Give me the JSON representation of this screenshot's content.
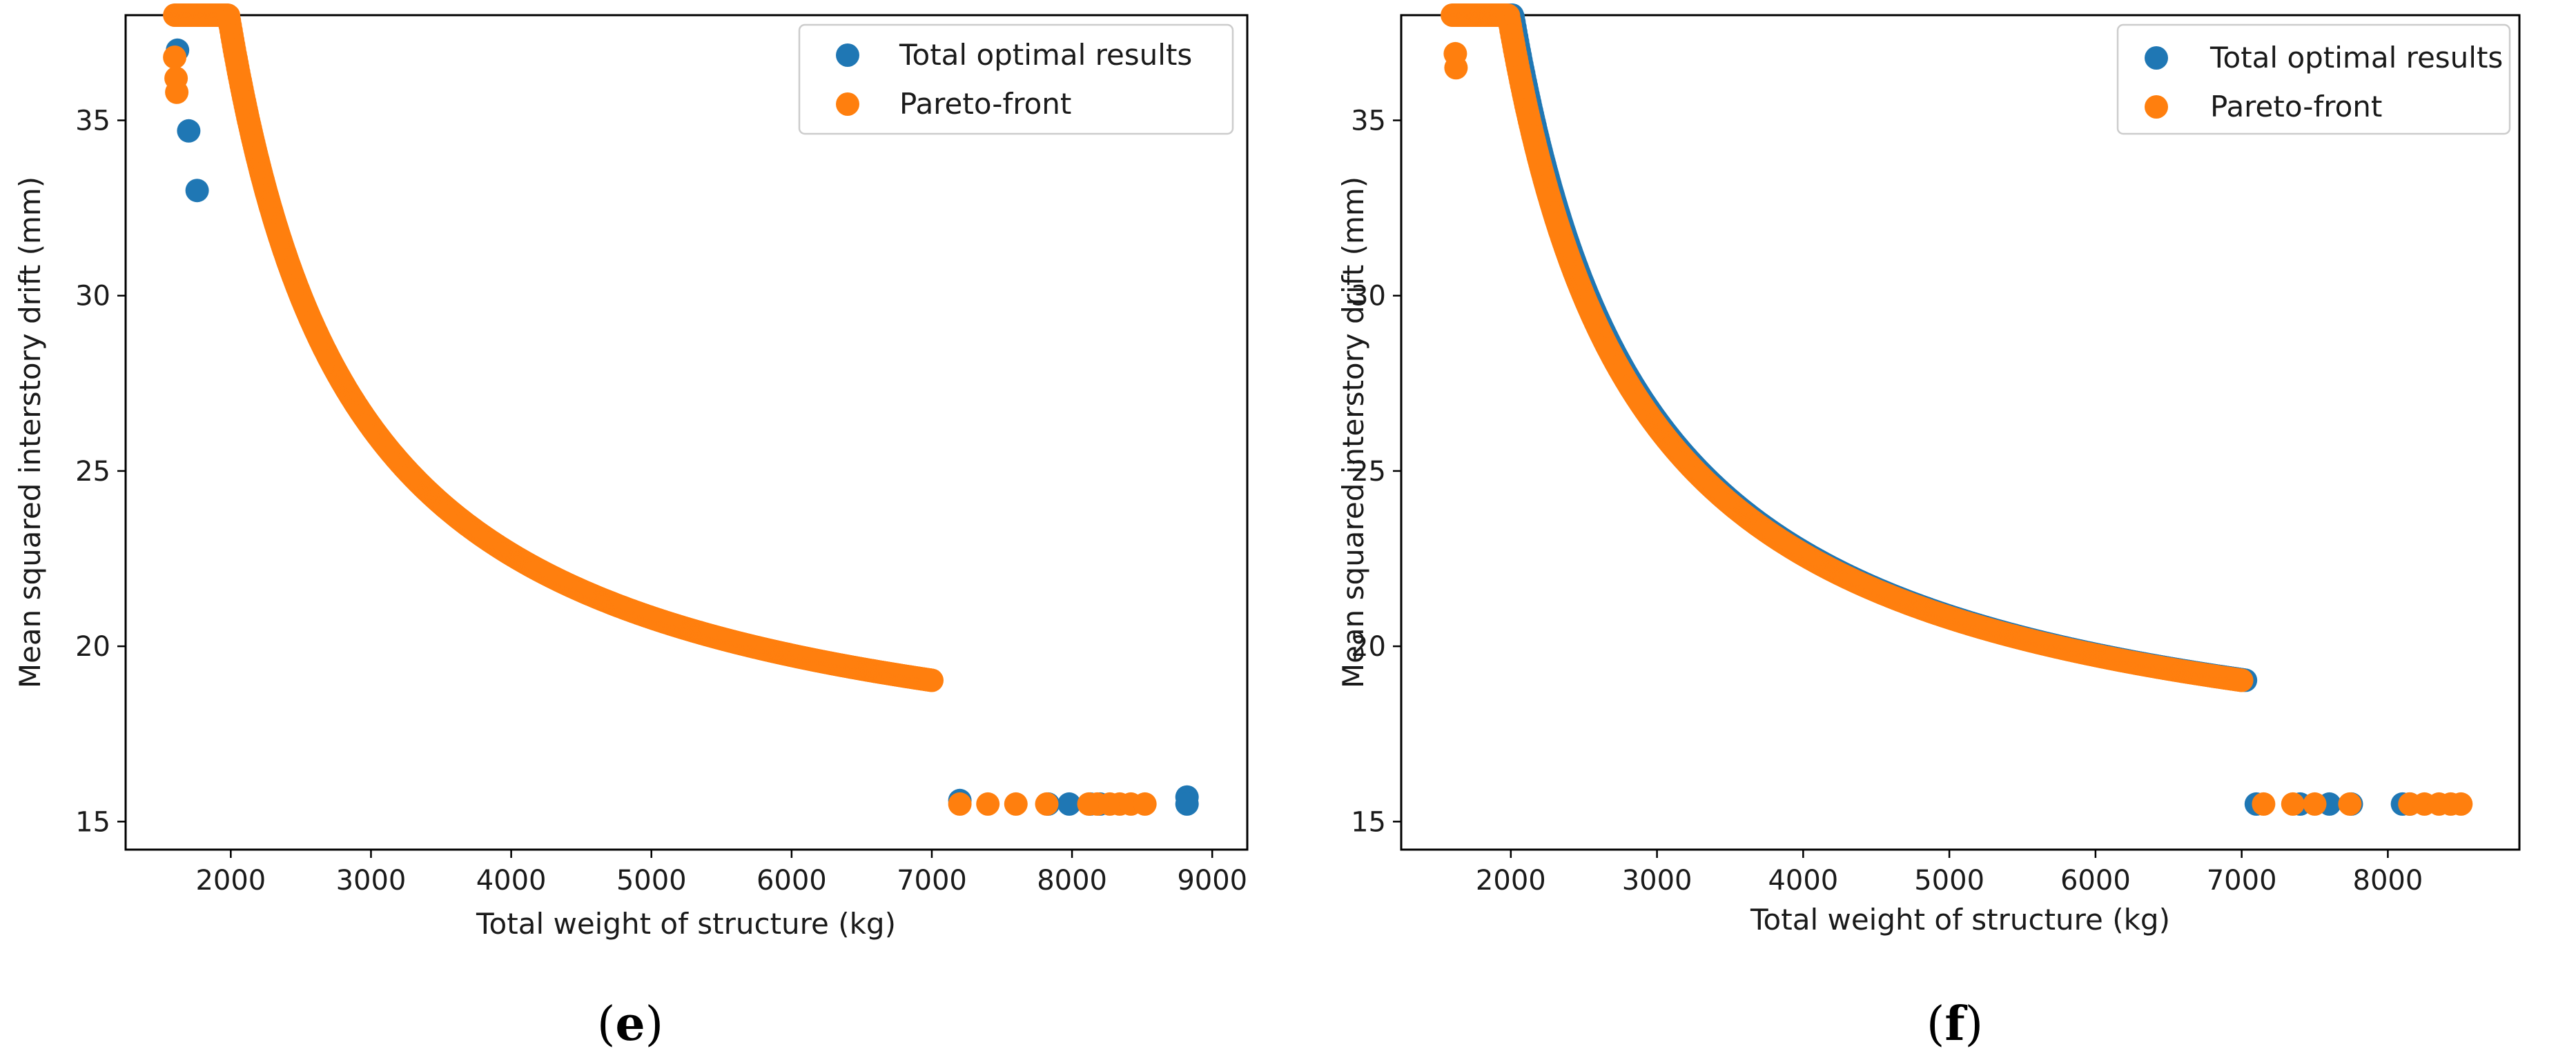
{
  "chart_data": [
    {
      "type": "scatter",
      "caption_prefix": "(",
      "caption_letter": "e",
      "caption_suffix": ")",
      "xlabel": "Total weight of structure (kg)",
      "ylabel": "Mean squared interstory drift (mm)",
      "xlim": [
        1250,
        9250
      ],
      "ylim": [
        14.2,
        38.0
      ],
      "xticks": [
        2000,
        3000,
        4000,
        5000,
        6000,
        7000,
        8000,
        9000
      ],
      "yticks": [
        15,
        20,
        25,
        30,
        35
      ],
      "legend_position": "top-right",
      "legend": [
        {
          "label": "Total optimal results",
          "color": "#1f77b4"
        },
        {
          "label": "Pareto-front",
          "color": "#ff7f0e"
        }
      ],
      "series": [
        {
          "name": "Total optimal results",
          "color": "#1f77b4",
          "points": [
            [
              1620,
              37.0
            ],
            [
              1700,
              34.7
            ],
            [
              1760,
              33.0
            ],
            [
              7200,
              15.6
            ],
            [
              7830,
              15.5
            ],
            [
              7980,
              15.5
            ],
            [
              8130,
              15.5
            ],
            [
              8200,
              15.5
            ],
            [
              8820,
              15.7
            ],
            [
              8820,
              15.5
            ]
          ]
        },
        {
          "name": "Pareto-front",
          "color": "#ff7f0e",
          "curve": {
            "a": 21000,
            "b": 15.5,
            "c": 1050,
            "x_start": 1600,
            "x_end": 7000
          },
          "points": [
            [
              1600,
              36.8
            ],
            [
              1610,
              36.2
            ],
            [
              1615,
              35.8
            ],
            [
              7200,
              15.5
            ],
            [
              7400,
              15.5
            ],
            [
              7600,
              15.5
            ],
            [
              7820,
              15.5
            ],
            [
              8120,
              15.5
            ],
            [
              8180,
              15.5
            ],
            [
              8270,
              15.5
            ],
            [
              8340,
              15.5
            ],
            [
              8420,
              15.5
            ],
            [
              8520,
              15.5
            ]
          ]
        }
      ]
    },
    {
      "type": "scatter",
      "caption_prefix": "(",
      "caption_letter": "f",
      "caption_suffix": ")",
      "xlabel": "Total weight of structure (kg)",
      "ylabel": "Mean squared interstory drift (mm)",
      "xlim": [
        1250,
        8900
      ],
      "ylim": [
        14.2,
        38.0
      ],
      "xticks": [
        2000,
        3000,
        4000,
        5000,
        6000,
        7000,
        8000
      ],
      "yticks": [
        15,
        20,
        25,
        30,
        35
      ],
      "legend_position": "top-right",
      "legend": [
        {
          "label": "Total optimal results",
          "color": "#1f77b4"
        },
        {
          "label": "Pareto-front",
          "color": "#ff7f0e"
        }
      ],
      "series": [
        {
          "name": "Total optimal results",
          "color": "#1f77b4",
          "curve": {
            "a": 21000,
            "b": 15.5,
            "c": 1050,
            "x_start": 1620,
            "x_end": 7000,
            "offset_x": 30
          },
          "points": [
            [
              7100,
              15.5
            ],
            [
              7400,
              15.5
            ],
            [
              7600,
              15.5
            ],
            [
              7750,
              15.5
            ],
            [
              8100,
              15.5
            ],
            [
              8150,
              15.5
            ]
          ]
        },
        {
          "name": "Pareto-front",
          "color": "#ff7f0e",
          "curve": {
            "a": 21000,
            "b": 15.5,
            "c": 1050,
            "x_start": 1600,
            "x_end": 7000
          },
          "points": [
            [
              1620,
              36.9
            ],
            [
              1625,
              36.5
            ],
            [
              7150,
              15.5
            ],
            [
              7350,
              15.5
            ],
            [
              7500,
              15.5
            ],
            [
              7740,
              15.5
            ],
            [
              8150,
              15.5
            ],
            [
              8250,
              15.5
            ],
            [
              8350,
              15.5
            ],
            [
              8430,
              15.5
            ],
            [
              8500,
              15.5
            ]
          ]
        }
      ]
    }
  ]
}
